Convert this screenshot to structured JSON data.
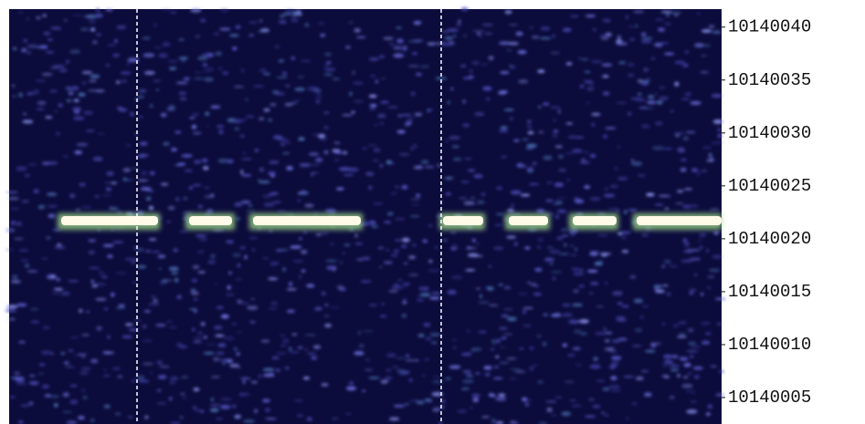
{
  "chart_data": {
    "type": "spectrogram",
    "ylim": [
      10140002.5,
      10140041.7
    ],
    "yticks": [
      10140005,
      10140010,
      10140015,
      10140020,
      10140025,
      10140030,
      10140035,
      10140040
    ]
  }
}
